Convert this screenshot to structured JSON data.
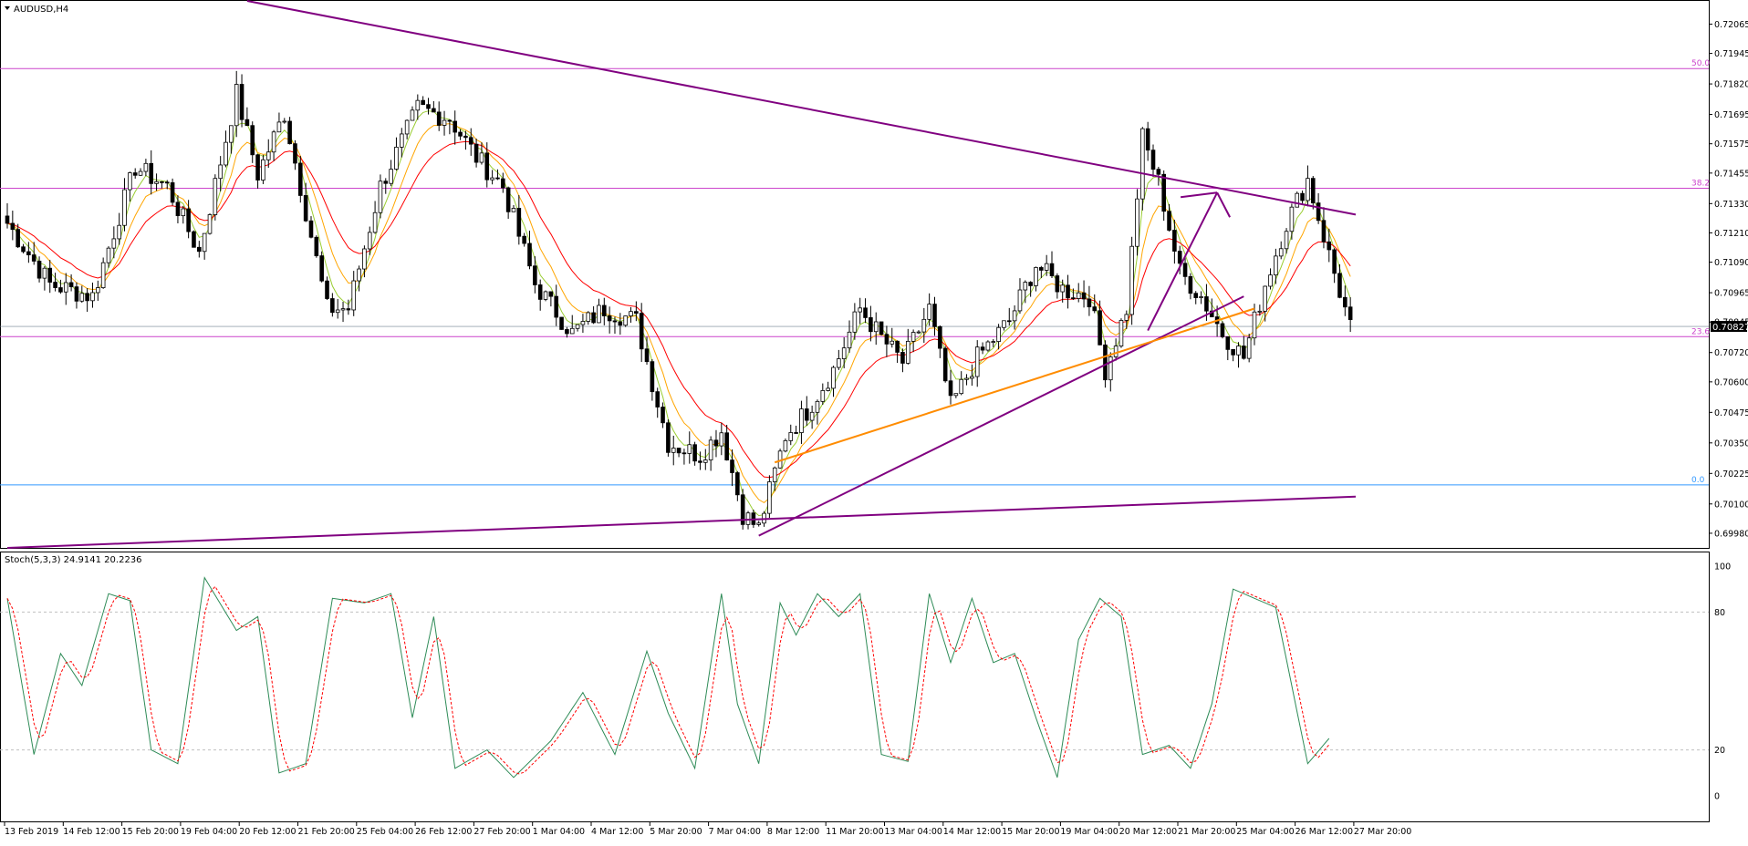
{
  "symbol_label": "AUDUSD,H4",
  "indicator_label": "Stoch(5,3,3) 24.9141 20.2236",
  "colors": {
    "bull": "#ffffff",
    "bear": "#000000",
    "wick": "#000000",
    "ma_fast": "#9acd32",
    "ma_mid": "#ffa500",
    "ma_slow": "#ff0000",
    "trend_purple": "#800080",
    "trend_orange": "#ff8c00",
    "fib_line": "#cc44cc",
    "zero_line": "#3399ff",
    "stoch_main": "#2e8b57",
    "stoch_signal": "#ff0000",
    "grid_dash": "#c0c0c0",
    "price_tag_bg": "#000000",
    "price_tag_text": "#ffffff"
  },
  "chart_data": {
    "type": "candlestick",
    "title": "AUDUSD,H4",
    "y_range": [
      0.6992,
      0.7216
    ],
    "y_ticks": [
      "0.72065",
      "0.71945",
      "0.71820",
      "0.71695",
      "0.71575",
      "0.71455",
      "0.71330",
      "0.71210",
      "0.71090",
      "0.70965",
      "0.70845",
      "0.70720",
      "0.70600",
      "0.70475",
      "0.70350",
      "0.70225",
      "0.70100",
      "0.69980"
    ],
    "x_labels": [
      "13 Feb 2019",
      "14 Feb 12:00",
      "15 Feb 20:00",
      "19 Feb 04:00",
      "20 Feb 12:00",
      "21 Feb 20:00",
      "25 Feb 04:00",
      "26 Feb 12:00",
      "27 Feb 20:00",
      "1 Mar 04:00",
      "4 Mar 12:00",
      "5 Mar 20:00",
      "7 Mar 04:00",
      "8 Mar 12:00",
      "11 Mar 20:00",
      "13 Mar 04:00",
      "14 Mar 12:00",
      "15 Mar 20:00",
      "19 Mar 04:00",
      "20 Mar 12:00",
      "21 Mar 20:00",
      "25 Mar 04:00",
      "26 Mar 12:00",
      "27 Mar 20:00"
    ],
    "current_price": "0.70827",
    "fib_levels": [
      {
        "label": "50.0",
        "price": 0.71883
      },
      {
        "label": "38.2",
        "price": 0.71393
      },
      {
        "label": "23.6",
        "price": 0.70785
      },
      {
        "label": "0.0",
        "price": 0.70178
      }
    ],
    "candle_anchors": [
      {
        "i": 0,
        "p": 0.7125
      },
      {
        "i": 8,
        "p": 0.71
      },
      {
        "i": 16,
        "p": 0.7095
      },
      {
        "i": 24,
        "p": 0.7148
      },
      {
        "i": 30,
        "p": 0.714
      },
      {
        "i": 36,
        "p": 0.7113
      },
      {
        "i": 43,
        "p": 0.7178
      },
      {
        "i": 47,
        "p": 0.7145
      },
      {
        "i": 52,
        "p": 0.717
      },
      {
        "i": 60,
        "p": 0.709
      },
      {
        "i": 64,
        "p": 0.709
      },
      {
        "i": 70,
        "p": 0.714
      },
      {
        "i": 77,
        "p": 0.7172
      },
      {
        "i": 83,
        "p": 0.7168
      },
      {
        "i": 88,
        "p": 0.7152
      },
      {
        "i": 93,
        "p": 0.714
      },
      {
        "i": 99,
        "p": 0.71
      },
      {
        "i": 106,
        "p": 0.708
      },
      {
        "i": 112,
        "p": 0.709
      },
      {
        "i": 118,
        "p": 0.7085
      },
      {
        "i": 124,
        "p": 0.7035
      },
      {
        "i": 130,
        "p": 0.703
      },
      {
        "i": 134,
        "p": 0.704
      },
      {
        "i": 138,
        "p": 0.7006
      },
      {
        "i": 141,
        "p": 0.7
      },
      {
        "i": 146,
        "p": 0.7038
      },
      {
        "i": 150,
        "p": 0.7048
      },
      {
        "i": 155,
        "p": 0.7065
      },
      {
        "i": 160,
        "p": 0.709
      },
      {
        "i": 164,
        "p": 0.7078
      },
      {
        "i": 168,
        "p": 0.7068
      },
      {
        "i": 173,
        "p": 0.709
      },
      {
        "i": 177,
        "p": 0.705
      },
      {
        "i": 182,
        "p": 0.707
      },
      {
        "i": 188,
        "p": 0.7085
      },
      {
        "i": 193,
        "p": 0.7108
      },
      {
        "i": 198,
        "p": 0.7098
      },
      {
        "i": 203,
        "p": 0.7095
      },
      {
        "i": 206,
        "p": 0.7065
      },
      {
        "i": 210,
        "p": 0.709
      },
      {
        "i": 213,
        "p": 0.716
      },
      {
        "i": 216,
        "p": 0.7142
      },
      {
        "i": 220,
        "p": 0.7105
      },
      {
        "i": 224,
        "p": 0.7095
      },
      {
        "i": 228,
        "p": 0.708
      },
      {
        "i": 232,
        "p": 0.707
      },
      {
        "i": 236,
        "p": 0.71
      },
      {
        "i": 240,
        "p": 0.7125
      },
      {
        "i": 244,
        "p": 0.7143
      },
      {
        "i": 248,
        "p": 0.7112
      },
      {
        "i": 252,
        "p": 0.7082
      }
    ],
    "candle_count": 253,
    "stochastic": {
      "name": "Stoch(5,3,3)",
      "main": 24.9141,
      "signal": 20.2236,
      "y_range": [
        0,
        100
      ],
      "y_ticks": [
        "100",
        "80",
        "20",
        "0"
      ],
      "levels": [
        80,
        20
      ],
      "main_anchors": [
        {
          "i": 0,
          "v": 86
        },
        {
          "i": 5,
          "v": 18
        },
        {
          "i": 10,
          "v": 62
        },
        {
          "i": 14,
          "v": 48
        },
        {
          "i": 19,
          "v": 88
        },
        {
          "i": 23,
          "v": 85
        },
        {
          "i": 27,
          "v": 20
        },
        {
          "i": 32,
          "v": 14
        },
        {
          "i": 37,
          "v": 95
        },
        {
          "i": 43,
          "v": 72
        },
        {
          "i": 47,
          "v": 78
        },
        {
          "i": 51,
          "v": 10
        },
        {
          "i": 56,
          "v": 14
        },
        {
          "i": 61,
          "v": 86
        },
        {
          "i": 67,
          "v": 84
        },
        {
          "i": 72,
          "v": 88
        },
        {
          "i": 76,
          "v": 34
        },
        {
          "i": 80,
          "v": 78
        },
        {
          "i": 84,
          "v": 12
        },
        {
          "i": 90,
          "v": 20
        },
        {
          "i": 95,
          "v": 8
        },
        {
          "i": 102,
          "v": 24
        },
        {
          "i": 108,
          "v": 45
        },
        {
          "i": 114,
          "v": 18
        },
        {
          "i": 120,
          "v": 63
        },
        {
          "i": 124,
          "v": 36
        },
        {
          "i": 129,
          "v": 12
        },
        {
          "i": 134,
          "v": 88
        },
        {
          "i": 137,
          "v": 40
        },
        {
          "i": 141,
          "v": 14
        },
        {
          "i": 145,
          "v": 84
        },
        {
          "i": 148,
          "v": 70
        },
        {
          "i": 152,
          "v": 88
        },
        {
          "i": 156,
          "v": 78
        },
        {
          "i": 160,
          "v": 88
        },
        {
          "i": 164,
          "v": 18
        },
        {
          "i": 169,
          "v": 15
        },
        {
          "i": 173,
          "v": 88
        },
        {
          "i": 177,
          "v": 58
        },
        {
          "i": 181,
          "v": 86
        },
        {
          "i": 185,
          "v": 58
        },
        {
          "i": 189,
          "v": 62
        },
        {
          "i": 193,
          "v": 34
        },
        {
          "i": 197,
          "v": 8
        },
        {
          "i": 201,
          "v": 68
        },
        {
          "i": 205,
          "v": 86
        },
        {
          "i": 209,
          "v": 78
        },
        {
          "i": 213,
          "v": 18
        },
        {
          "i": 218,
          "v": 22
        },
        {
          "i": 222,
          "v": 12
        },
        {
          "i": 226,
          "v": 40
        },
        {
          "i": 230,
          "v": 90
        },
        {
          "i": 234,
          "v": 86
        },
        {
          "i": 238,
          "v": 82
        },
        {
          "i": 244,
          "v": 14
        },
        {
          "i": 248,
          "v": 25
        }
      ]
    },
    "drawn_lines": [
      {
        "name": "upper-trendline",
        "color": "trend_purple",
        "from": {
          "i": 45,
          "p": 0.7216
        },
        "to": {
          "i": 253,
          "p": 0.71285
        }
      },
      {
        "name": "support-trendline",
        "color": "trend_purple",
        "from": {
          "i": 141,
          "p": 0.6997
        },
        "to": {
          "i": 232,
          "p": 0.7095
        }
      },
      {
        "name": "orange-trendline",
        "color": "trend_orange",
        "from": {
          "i": 144,
          "p": 0.7027
        },
        "to": {
          "i": 234,
          "p": 0.709
        }
      },
      {
        "name": "bottom-trendline",
        "color": "trend_purple",
        "from": {
          "i": 0,
          "p": 0.6992
        },
        "to": {
          "i": 253,
          "p": 0.7013
        }
      },
      {
        "name": "projection-arrow",
        "color": "trend_purple",
        "from": {
          "i": 214,
          "p": 0.7081
        },
        "to": {
          "i": 227,
          "p": 0.71375
        }
      }
    ]
  }
}
